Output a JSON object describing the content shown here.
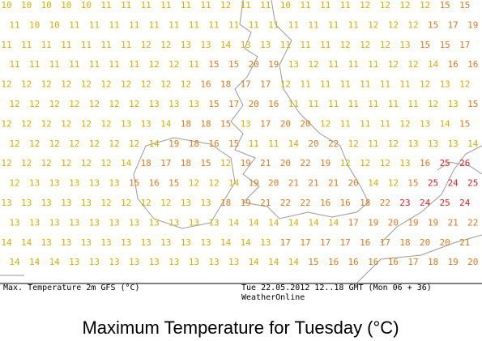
{
  "map": {
    "rows": [
      [
        10,
        10,
        10,
        10,
        10,
        11,
        11,
        11,
        11,
        11,
        11,
        12,
        11,
        11,
        10,
        11,
        11,
        11,
        12,
        12,
        12,
        12,
        15,
        15
      ],
      [
        11,
        10,
        10,
        11,
        11,
        11,
        11,
        11,
        11,
        11,
        11,
        11,
        11,
        11,
        11,
        11,
        11,
        11,
        12,
        12,
        12,
        15,
        17,
        19
      ],
      [
        11,
        11,
        11,
        11,
        11,
        11,
        11,
        12,
        12,
        13,
        13,
        14,
        13,
        13,
        11,
        11,
        11,
        12,
        12,
        12,
        13,
        15,
        15,
        17
      ],
      [
        11,
        11,
        11,
        11,
        11,
        11,
        11,
        12,
        12,
        11,
        15,
        15,
        20,
        19,
        13,
        12,
        11,
        11,
        11,
        12,
        12,
        14,
        16,
        16
      ],
      [
        12,
        12,
        12,
        12,
        12,
        12,
        12,
        12,
        12,
        12,
        16,
        18,
        17,
        17,
        12,
        11,
        11,
        11,
        11,
        11,
        11,
        12,
        13,
        12
      ],
      [
        12,
        12,
        12,
        12,
        12,
        12,
        12,
        13,
        13,
        13,
        15,
        17,
        20,
        16,
        11,
        11,
        11,
        11,
        11,
        11,
        11,
        12,
        13,
        15
      ],
      [
        12,
        12,
        12,
        12,
        12,
        12,
        13,
        13,
        14,
        18,
        18,
        15,
        13,
        17,
        20,
        20,
        12,
        11,
        11,
        11,
        12,
        13,
        14,
        15
      ],
      [
        12,
        12,
        12,
        12,
        12,
        12,
        12,
        14,
        19,
        18,
        16,
        15,
        11,
        11,
        14,
        20,
        22,
        12,
        11,
        12,
        13,
        13,
        13,
        14
      ],
      [
        12,
        12,
        12,
        12,
        12,
        12,
        14,
        18,
        17,
        18,
        15,
        12,
        19,
        21,
        20,
        22,
        19,
        12,
        12,
        12,
        13,
        16,
        25,
        26
      ],
      [
        12,
        13,
        13,
        13,
        13,
        13,
        15,
        16,
        15,
        12,
        12,
        14,
        19,
        20,
        21,
        21,
        21,
        20,
        14,
        12,
        15,
        25,
        24,
        25
      ],
      [
        13,
        13,
        13,
        13,
        13,
        12,
        12,
        12,
        12,
        13,
        13,
        18,
        19,
        21,
        22,
        22,
        16,
        16,
        18,
        22,
        23,
        24,
        25,
        24
      ],
      [
        13,
        13,
        13,
        13,
        13,
        13,
        13,
        13,
        13,
        13,
        13,
        14,
        14,
        14,
        14,
        14,
        14,
        17,
        19,
        20,
        19,
        19,
        21,
        22
      ],
      [
        14,
        14,
        13,
        13,
        13,
        13,
        13,
        13,
        13,
        13,
        13,
        14,
        14,
        13,
        17,
        17,
        17,
        17,
        16,
        17,
        18,
        20,
        20,
        21
      ],
      [
        14,
        14,
        14,
        13,
        13,
        13,
        13,
        13,
        13,
        13,
        13,
        13,
        14,
        14,
        14,
        15,
        16,
        16,
        16,
        16,
        17,
        18,
        19,
        20
      ]
    ],
    "color_bands": [
      {
        "from": 0,
        "color": "#d2b000"
      },
      {
        "from": 15,
        "color": "#e07a1c"
      },
      {
        "from": 23,
        "color": "#e02020"
      }
    ],
    "footer_left": "Max. Temperature 2m GFS (°C)",
    "footer_right": "Tue 22.05.2012 12..18 GMT (Mon 06 + 36)",
    "footer_source": "WeatherOnline",
    "caption": "Maximum Temperature for Tuesday (°C)"
  }
}
